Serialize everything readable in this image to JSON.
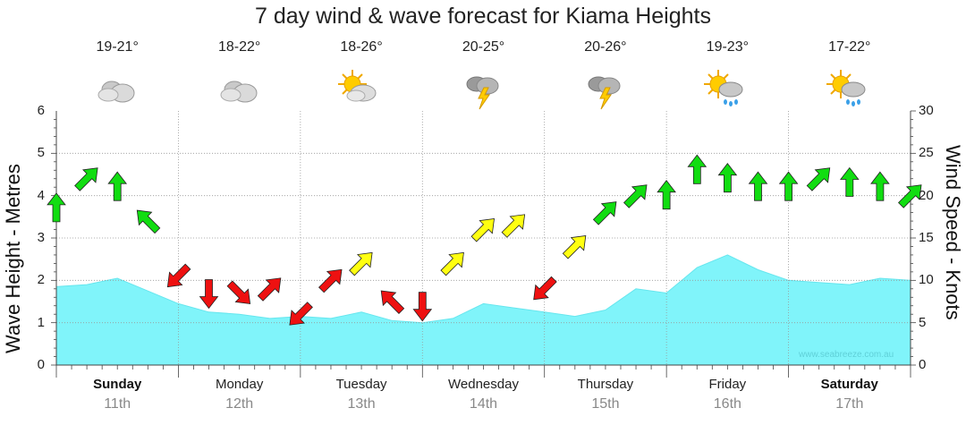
{
  "chart_data": {
    "type": "area",
    "title": "7 day wind & wave forecast for Kiama Heights",
    "ylabel_left": "Wave Height - Metres",
    "ylabel_right": "Wind Speed - Knots",
    "ylim_left": [
      0,
      6
    ],
    "ylim_right": [
      0,
      30
    ],
    "yticks_left": [
      "0",
      "1",
      "2",
      "3",
      "4",
      "5",
      "6"
    ],
    "yticks_right": [
      "0",
      "5",
      "10",
      "15",
      "20",
      "25",
      "30"
    ],
    "days": [
      {
        "name": "Sunday",
        "date": "11th",
        "bold": true,
        "temp": "19-21°",
        "icon": "cloudy-icon",
        "icon_type": "cloudy"
      },
      {
        "name": "Monday",
        "date": "12th",
        "bold": false,
        "temp": "18-22°",
        "icon": "cloudy-icon",
        "icon_type": "cloudy"
      },
      {
        "name": "Tuesday",
        "date": "13th",
        "bold": false,
        "temp": "18-26°",
        "icon": "partly-cloudy-icon",
        "icon_type": "sun"
      },
      {
        "name": "Wednesday",
        "date": "14th",
        "bold": false,
        "temp": "20-25°",
        "icon": "thunderstorm-icon",
        "icon_type": "storm"
      },
      {
        "name": "Thursday",
        "date": "15th",
        "bold": false,
        "temp": "20-26°",
        "icon": "thunderstorm-icon",
        "icon_type": "storm"
      },
      {
        "name": "Friday",
        "date": "16th",
        "bold": false,
        "temp": "19-23°",
        "icon": "sun-showers-icon",
        "icon_type": "shower"
      },
      {
        "name": "Saturday",
        "date": "17th",
        "bold": true,
        "temp": "17-22°",
        "icon": "sun-showers-icon",
        "icon_type": "shower"
      }
    ],
    "wave_series": {
      "name": "Wave Height (m)",
      "color": "#80f4fa",
      "x_days": [
        0,
        0.25,
        0.5,
        0.75,
        1,
        1.25,
        1.5,
        1.75,
        2,
        2.25,
        2.5,
        2.75,
        3,
        3.25,
        3.5,
        3.75,
        4,
        4.25,
        4.5,
        4.75,
        5,
        5.25,
        5.5,
        5.75,
        6,
        6.25,
        6.5,
        6.75,
        7
      ],
      "values": [
        1.85,
        1.9,
        2.05,
        1.75,
        1.45,
        1.25,
        1.2,
        1.1,
        1.15,
        1.1,
        1.25,
        1.05,
        1.0,
        1.1,
        1.45,
        1.35,
        1.25,
        1.15,
        1.3,
        1.8,
        1.7,
        2.3,
        2.6,
        2.25,
        2.0,
        1.95,
        1.9,
        2.05,
        2.0
      ]
    },
    "wind_series": {
      "name": "Wind Speed (kt)",
      "colors": {
        "strong": "#11dd11",
        "moderate": "#ffff11",
        "light": "#ee1111"
      },
      "x_days": [
        0,
        0.25,
        0.5,
        0.75,
        1,
        1.25,
        1.5,
        1.75,
        2,
        2.25,
        2.5,
        2.75,
        3,
        3.25,
        3.5,
        3.75,
        4,
        4.25,
        4.5,
        4.75,
        5,
        5.25,
        5.5,
        5.75,
        6,
        6.25,
        6.5,
        6.75,
        7
      ],
      "values": [
        18.5,
        22,
        21,
        17,
        10.5,
        8.5,
        8.5,
        9,
        6,
        10,
        12,
        7.5,
        7,
        12,
        16,
        16.5,
        9,
        14,
        18,
        20,
        20,
        23,
        22,
        21,
        21,
        22,
        21.5,
        21,
        20
      ],
      "directions": [
        "N",
        "NE",
        "N",
        "NW",
        "SW",
        "S",
        "SE",
        "NE",
        "SW",
        "NE",
        "NE",
        "NW",
        "S",
        "NE",
        "NE",
        "NE",
        "SW",
        "NE",
        "NE",
        "NE",
        "N",
        "N",
        "N",
        "N",
        "N",
        "NE",
        "N",
        "N",
        "NE"
      ]
    },
    "grid": true,
    "credit": "www.seabreeze.com.au"
  }
}
